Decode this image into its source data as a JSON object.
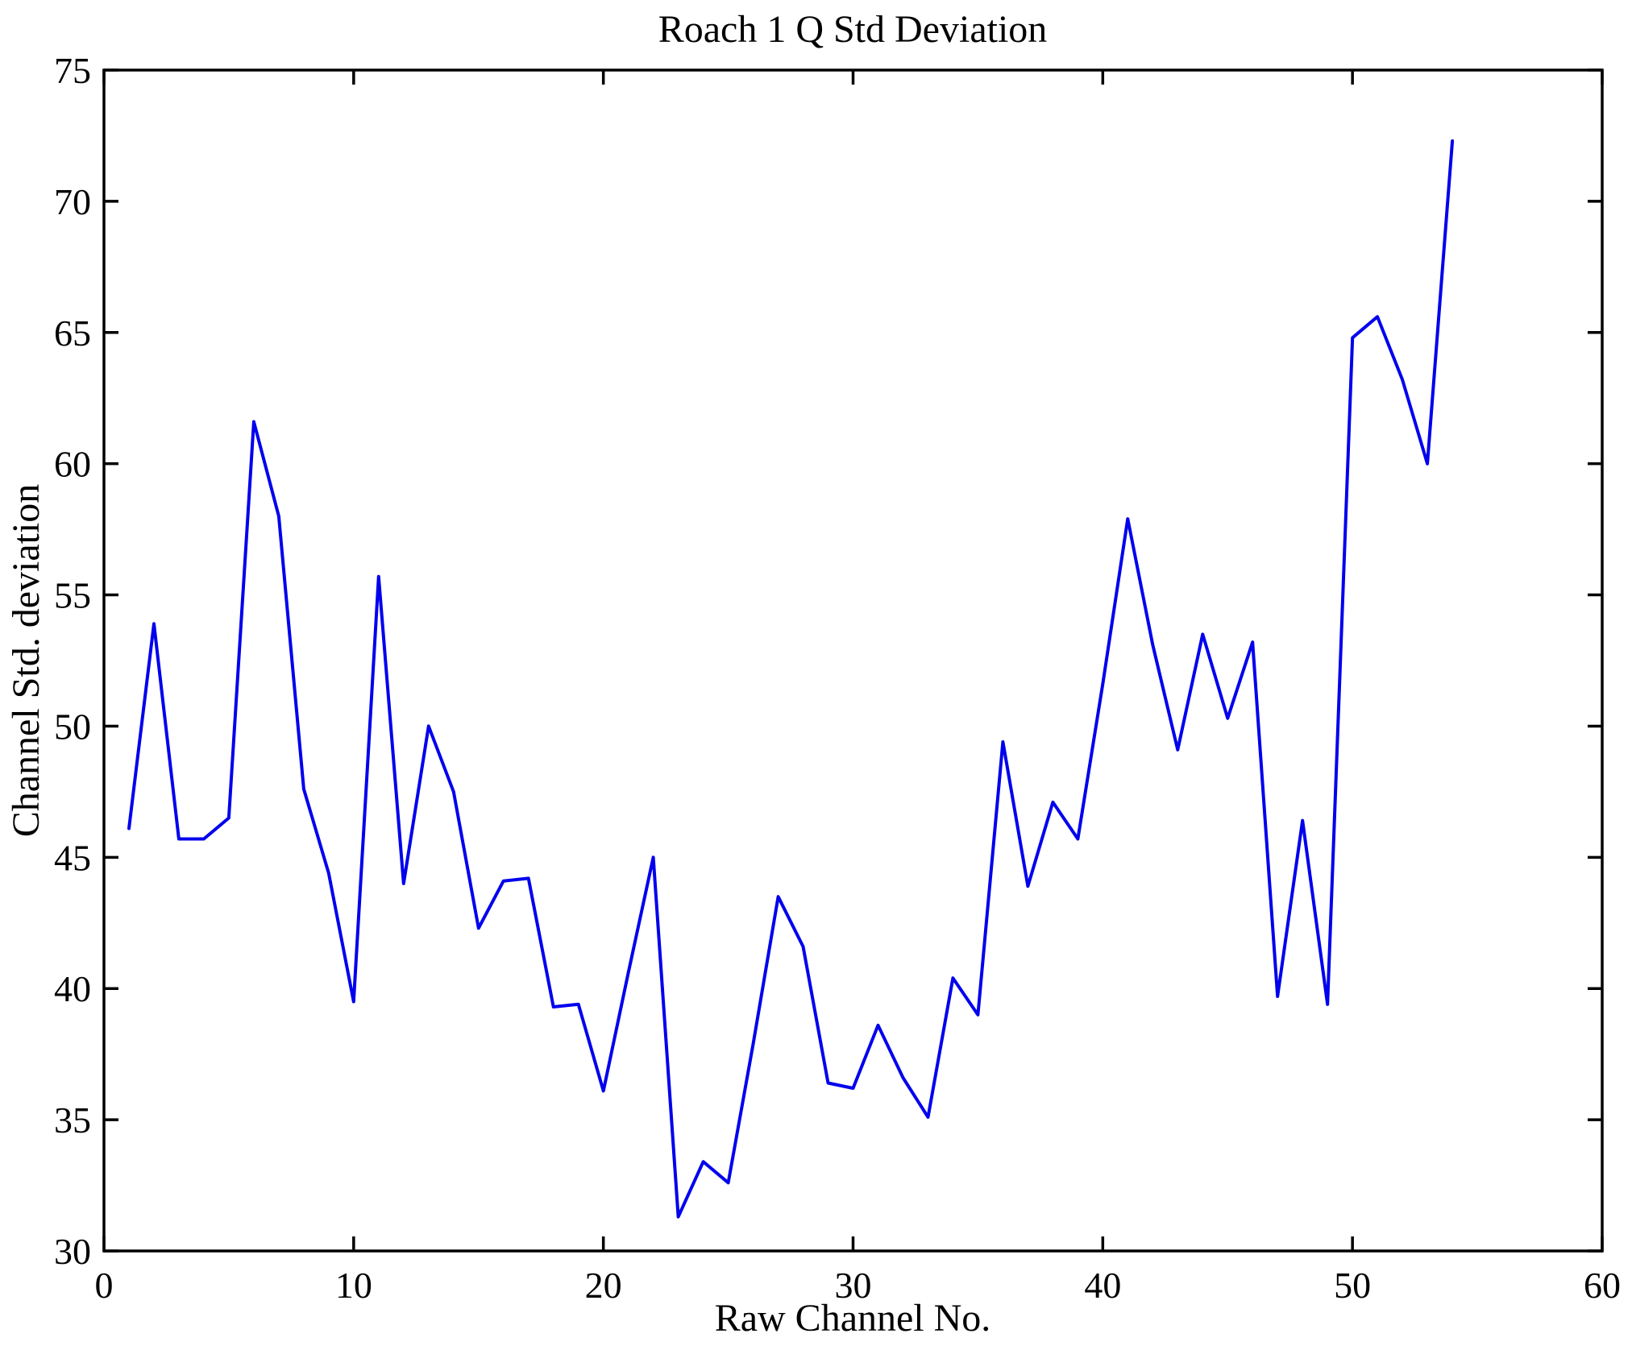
{
  "chart_data": {
    "type": "line",
    "title": "Roach 1 Q Std Deviation",
    "xlabel": "Raw Channel No.",
    "ylabel": "Channel Std. deviation",
    "xlim": [
      0,
      60
    ],
    "ylim": [
      30,
      75
    ],
    "xticks": [
      0,
      10,
      20,
      30,
      40,
      50,
      60
    ],
    "yticks": [
      30,
      35,
      40,
      45,
      50,
      55,
      60,
      65,
      70,
      75
    ],
    "grid": false,
    "legend": "none",
    "line_color": "#0000ee",
    "axis_color": "#000000",
    "x": [
      1,
      2,
      3,
      4,
      5,
      6,
      7,
      8,
      9,
      10,
      11,
      12,
      13,
      14,
      15,
      16,
      17,
      18,
      19,
      20,
      21,
      22,
      23,
      24,
      25,
      26,
      27,
      28,
      29,
      30,
      31,
      32,
      33,
      34,
      35,
      36,
      37,
      38,
      39,
      40,
      41,
      42,
      43,
      44,
      45,
      46,
      47,
      48,
      49,
      50,
      51,
      52,
      53,
      54
    ],
    "y": [
      46.1,
      53.9,
      45.7,
      45.7,
      46.5,
      61.6,
      58.0,
      47.6,
      44.4,
      39.5,
      55.7,
      44.0,
      50.0,
      47.5,
      42.3,
      44.1,
      44.2,
      39.3,
      39.4,
      36.1,
      40.6,
      45.0,
      31.3,
      33.4,
      32.6,
      37.9,
      43.5,
      41.6,
      36.4,
      36.2,
      38.6,
      36.6,
      35.1,
      40.4,
      39.0,
      49.4,
      43.9,
      47.1,
      45.7,
      51.6,
      57.9,
      53.1,
      49.1,
      53.5,
      50.3,
      53.2,
      39.7,
      46.4,
      39.4,
      64.8,
      65.6,
      63.2,
      60.0,
      72.3
    ]
  }
}
